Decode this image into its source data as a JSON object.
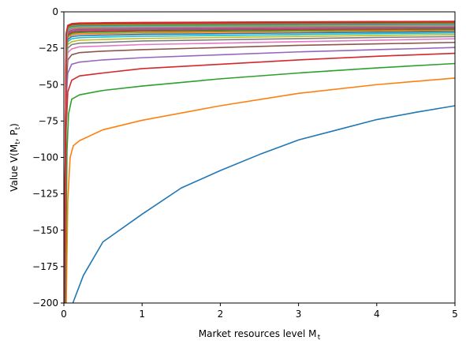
{
  "chart_data": {
    "type": "line",
    "title": "",
    "xlabel": "Market resources level M",
    "xlabel_sub": "t",
    "ylabel": "Value V(M",
    "ylabel_sub1": "t",
    "ylabel_mid": ", P",
    "ylabel_sub2": "t",
    "ylabel_end": ")",
    "xlim": [
      0,
      5
    ],
    "ylim": [
      -200,
      0
    ],
    "xticks": [
      0,
      1,
      2,
      3,
      4,
      5
    ],
    "yticks": [
      -200,
      -175,
      -150,
      -125,
      -100,
      -75,
      -50,
      -25,
      0
    ],
    "grid": false,
    "legend": "none",
    "series": [
      {
        "color": "#1f77b4",
        "points": [
          [
            0.115,
            -200
          ],
          [
            0.25,
            -181
          ],
          [
            0.5,
            -158
          ],
          [
            1,
            -139
          ],
          [
            1.5,
            -121
          ],
          [
            2,
            -109
          ],
          [
            2.5,
            -98
          ],
          [
            3,
            -88
          ],
          [
            3.5,
            -81
          ],
          [
            4,
            -74
          ],
          [
            4.5,
            -69
          ],
          [
            5,
            -64.5
          ]
        ]
      },
      {
        "color": "#ff7f0e",
        "points": [
          [
            0.03,
            -200
          ],
          [
            0.05,
            -130
          ],
          [
            0.08,
            -100
          ],
          [
            0.12,
            -92
          ],
          [
            0.2,
            -88.5
          ],
          [
            0.5,
            -81
          ],
          [
            1,
            -74.5
          ],
          [
            2,
            -64.5
          ],
          [
            3,
            -56
          ],
          [
            4,
            -50
          ],
          [
            5,
            -45.5
          ]
        ]
      },
      {
        "color": "#2ca02c",
        "points": [
          [
            0.02,
            -200
          ],
          [
            0.04,
            -95
          ],
          [
            0.06,
            -70
          ],
          [
            0.1,
            -60
          ],
          [
            0.2,
            -57
          ],
          [
            0.5,
            -54
          ],
          [
            1,
            -51
          ],
          [
            2,
            -46
          ],
          [
            3,
            -42
          ],
          [
            4,
            -38.5
          ],
          [
            5,
            -35.5
          ]
        ]
      },
      {
        "color": "#d62728",
        "points": [
          [
            0.015,
            -200
          ],
          [
            0.03,
            -80
          ],
          [
            0.05,
            -55
          ],
          [
            0.1,
            -47
          ],
          [
            0.2,
            -44
          ],
          [
            0.5,
            -42
          ],
          [
            1,
            -39
          ],
          [
            2,
            -36
          ],
          [
            3,
            -33
          ],
          [
            4,
            -30.5
          ],
          [
            5,
            -28.5
          ]
        ]
      },
      {
        "color": "#9467bd",
        "points": [
          [
            0.012,
            -200
          ],
          [
            0.03,
            -60
          ],
          [
            0.05,
            -42
          ],
          [
            0.1,
            -36
          ],
          [
            0.2,
            -34.5
          ],
          [
            0.5,
            -33
          ],
          [
            1,
            -31.5
          ],
          [
            2,
            -29.5
          ],
          [
            3,
            -27.5
          ],
          [
            4,
            -26
          ],
          [
            5,
            -24.5
          ]
        ]
      },
      {
        "color": "#8c564b",
        "points": [
          [
            0.01,
            -200
          ],
          [
            0.03,
            -50
          ],
          [
            0.05,
            -33
          ],
          [
            0.1,
            -29.5
          ],
          [
            0.2,
            -28
          ],
          [
            0.5,
            -27
          ],
          [
            1,
            -26
          ],
          [
            2,
            -24.5
          ],
          [
            3,
            -23
          ],
          [
            4,
            -22
          ],
          [
            5,
            -21
          ]
        ]
      },
      {
        "color": "#e377c2",
        "points": [
          [
            0.01,
            -200
          ],
          [
            0.03,
            -40
          ],
          [
            0.05,
            -28
          ],
          [
            0.1,
            -25.5
          ],
          [
            0.2,
            -24
          ],
          [
            0.5,
            -23.5
          ],
          [
            1,
            -22.5
          ],
          [
            2,
            -21.5
          ],
          [
            3,
            -20.5
          ],
          [
            4,
            -19.5
          ],
          [
            5,
            -18.5
          ]
        ]
      },
      {
        "color": "#7f7f7f",
        "points": [
          [
            0.01,
            -200
          ],
          [
            0.03,
            -36
          ],
          [
            0.05,
            -25
          ],
          [
            0.1,
            -22.5
          ],
          [
            0.2,
            -21.5
          ],
          [
            0.5,
            -21
          ],
          [
            1,
            -20
          ],
          [
            2,
            -19.2
          ],
          [
            3,
            -18.4
          ],
          [
            4,
            -17.6
          ],
          [
            5,
            -17
          ]
        ]
      },
      {
        "color": "#bcbd22",
        "points": [
          [
            0.009,
            -200
          ],
          [
            0.03,
            -33
          ],
          [
            0.05,
            -22.5
          ],
          [
            0.1,
            -20.5
          ],
          [
            0.2,
            -19.5
          ],
          [
            0.5,
            -19
          ],
          [
            1,
            -18.3
          ],
          [
            2,
            -17.6
          ],
          [
            3,
            -16.9
          ],
          [
            4,
            -16.2
          ],
          [
            5,
            -15.6
          ]
        ]
      },
      {
        "color": "#17becf",
        "points": [
          [
            0.009,
            -200
          ],
          [
            0.03,
            -30
          ],
          [
            0.05,
            -20.5
          ],
          [
            0.1,
            -18.5
          ],
          [
            0.2,
            -17.8
          ],
          [
            0.5,
            -17.3
          ],
          [
            1,
            -16.8
          ],
          [
            2,
            -16.2
          ],
          [
            3,
            -15.6
          ],
          [
            4,
            -15
          ],
          [
            5,
            -14.5
          ]
        ]
      },
      {
        "color": "#1f77b4",
        "points": [
          [
            0.008,
            -200
          ],
          [
            0.03,
            -28
          ],
          [
            0.05,
            -19
          ],
          [
            0.1,
            -17
          ],
          [
            0.2,
            -16.4
          ],
          [
            0.5,
            -16
          ],
          [
            1,
            -15.5
          ],
          [
            2,
            -15
          ],
          [
            3,
            -14.5
          ],
          [
            4,
            -14
          ],
          [
            5,
            -13.5
          ]
        ]
      },
      {
        "color": "#ff7f0e",
        "points": [
          [
            0.008,
            -200
          ],
          [
            0.03,
            -26
          ],
          [
            0.05,
            -17.5
          ],
          [
            0.1,
            -15.8
          ],
          [
            0.2,
            -15.2
          ],
          [
            0.5,
            -14.9
          ],
          [
            1,
            -14.5
          ],
          [
            2,
            -14
          ],
          [
            3,
            -13.5
          ],
          [
            4,
            -13.1
          ],
          [
            5,
            -12.7
          ]
        ]
      },
      {
        "color": "#2ca02c",
        "points": [
          [
            0.008,
            -200
          ],
          [
            0.03,
            -24
          ],
          [
            0.05,
            -16.5
          ],
          [
            0.1,
            -14.8
          ],
          [
            0.2,
            -14.2
          ],
          [
            0.5,
            -13.9
          ],
          [
            1,
            -13.5
          ],
          [
            2,
            -13.1
          ],
          [
            3,
            -12.7
          ],
          [
            4,
            -12.3
          ],
          [
            5,
            -12
          ]
        ]
      },
      {
        "color": "#d62728",
        "points": [
          [
            0.007,
            -200
          ],
          [
            0.03,
            -23
          ],
          [
            0.05,
            -15.5
          ],
          [
            0.1,
            -13.9
          ],
          [
            0.2,
            -13.4
          ],
          [
            0.5,
            -13.1
          ],
          [
            1,
            -12.7
          ],
          [
            2,
            -12.3
          ],
          [
            3,
            -12
          ],
          [
            4,
            -11.7
          ],
          [
            5,
            -11.4
          ]
        ]
      },
      {
        "color": "#9467bd",
        "points": [
          [
            0.007,
            -200
          ],
          [
            0.03,
            -22
          ],
          [
            0.05,
            -14.7
          ],
          [
            0.1,
            -13.1
          ],
          [
            0.2,
            -12.6
          ],
          [
            0.5,
            -12.4
          ],
          [
            1,
            -12
          ],
          [
            2,
            -11.7
          ],
          [
            3,
            -11.4
          ],
          [
            4,
            -11.1
          ],
          [
            5,
            -10.8
          ]
        ]
      },
      {
        "color": "#8c564b",
        "points": [
          [
            0.007,
            -200
          ],
          [
            0.03,
            -21
          ],
          [
            0.05,
            -13.9
          ],
          [
            0.1,
            -12.4
          ],
          [
            0.2,
            -11.9
          ],
          [
            0.5,
            -11.7
          ],
          [
            1,
            -11.4
          ],
          [
            2,
            -11.1
          ],
          [
            3,
            -10.8
          ],
          [
            4,
            -10.5
          ],
          [
            5,
            -10.3
          ]
        ]
      },
      {
        "color": "#e377c2",
        "points": [
          [
            0.007,
            -200
          ],
          [
            0.03,
            -20
          ],
          [
            0.05,
            -13.2
          ],
          [
            0.1,
            -11.8
          ],
          [
            0.2,
            -11.3
          ],
          [
            0.5,
            -11.1
          ],
          [
            1,
            -10.8
          ],
          [
            2,
            -10.5
          ],
          [
            3,
            -10.3
          ],
          [
            4,
            -10
          ],
          [
            5,
            -9.8
          ]
        ]
      },
      {
        "color": "#7f7f7f",
        "points": [
          [
            0.006,
            -200
          ],
          [
            0.03,
            -19
          ],
          [
            0.05,
            -12.6
          ],
          [
            0.1,
            -11.2
          ],
          [
            0.2,
            -10.8
          ],
          [
            0.5,
            -10.6
          ],
          [
            1,
            -10.3
          ],
          [
            2,
            -10
          ],
          [
            3,
            -9.8
          ],
          [
            4,
            -9.6
          ],
          [
            5,
            -9.4
          ]
        ]
      },
      {
        "color": "#bcbd22",
        "points": [
          [
            0.006,
            -200
          ],
          [
            0.03,
            -18.2
          ],
          [
            0.05,
            -12
          ],
          [
            0.1,
            -10.7
          ],
          [
            0.2,
            -10.3
          ],
          [
            0.5,
            -10.1
          ],
          [
            1,
            -9.8
          ],
          [
            2,
            -9.6
          ],
          [
            3,
            -9.4
          ],
          [
            4,
            -9.2
          ],
          [
            5,
            -9
          ]
        ]
      },
      {
        "color": "#17becf",
        "points": [
          [
            0.006,
            -200
          ],
          [
            0.03,
            -17.5
          ],
          [
            0.05,
            -11.5
          ],
          [
            0.1,
            -10.2
          ],
          [
            0.2,
            -9.8
          ],
          [
            0.5,
            -9.6
          ],
          [
            1,
            -9.4
          ],
          [
            2,
            -9.2
          ],
          [
            3,
            -9
          ],
          [
            4,
            -8.8
          ],
          [
            5,
            -8.6
          ]
        ]
      },
      {
        "color": "#1f77b4",
        "points": [
          [
            0.006,
            -200
          ],
          [
            0.03,
            -16.8
          ],
          [
            0.05,
            -11
          ],
          [
            0.1,
            -9.8
          ],
          [
            0.2,
            -9.4
          ],
          [
            0.5,
            -9.2
          ],
          [
            1,
            -9
          ],
          [
            2,
            -8.8
          ],
          [
            3,
            -8.6
          ],
          [
            4,
            -8.4
          ],
          [
            5,
            -8.2
          ]
        ]
      },
      {
        "color": "#ff7f0e",
        "points": [
          [
            0.005,
            -200
          ],
          [
            0.03,
            -16.2
          ],
          [
            0.05,
            -10.6
          ],
          [
            0.1,
            -9.4
          ],
          [
            0.2,
            -9
          ],
          [
            0.5,
            -8.8
          ],
          [
            1,
            -8.6
          ],
          [
            2,
            -8.4
          ],
          [
            3,
            -8.2
          ],
          [
            4,
            -8
          ],
          [
            5,
            -7.8
          ]
        ]
      },
      {
        "color": "#2ca02c",
        "points": [
          [
            0.005,
            -200
          ],
          [
            0.03,
            -15.6
          ],
          [
            0.05,
            -10.2
          ],
          [
            0.1,
            -9
          ],
          [
            0.2,
            -8.6
          ],
          [
            0.5,
            -8.4
          ],
          [
            1,
            -8.2
          ],
          [
            2,
            -8
          ],
          [
            3,
            -7.8
          ],
          [
            4,
            -7.6
          ],
          [
            5,
            -7.4
          ]
        ]
      },
      {
        "color": "#d62728",
        "points": [
          [
            0.005,
            -200
          ],
          [
            0.03,
            -15
          ],
          [
            0.05,
            -9.8
          ],
          [
            0.1,
            -8.6
          ],
          [
            0.2,
            -8.2
          ],
          [
            0.5,
            -8
          ],
          [
            1,
            -7.8
          ],
          [
            2,
            -7.6
          ],
          [
            3,
            -7.4
          ],
          [
            4,
            -7.2
          ],
          [
            5,
            -7
          ]
        ]
      },
      {
        "color": "#d62728",
        "points": [
          [
            0.005,
            -200
          ],
          [
            0.03,
            -14.5
          ],
          [
            0.05,
            -9.3
          ],
          [
            0.1,
            -8.1
          ],
          [
            0.2,
            -7.7
          ],
          [
            0.5,
            -7.5
          ],
          [
            1,
            -7.3
          ],
          [
            2,
            -7.1
          ],
          [
            3,
            -6.9
          ],
          [
            4,
            -6.7
          ],
          [
            5,
            -6.5
          ]
        ]
      }
    ]
  }
}
